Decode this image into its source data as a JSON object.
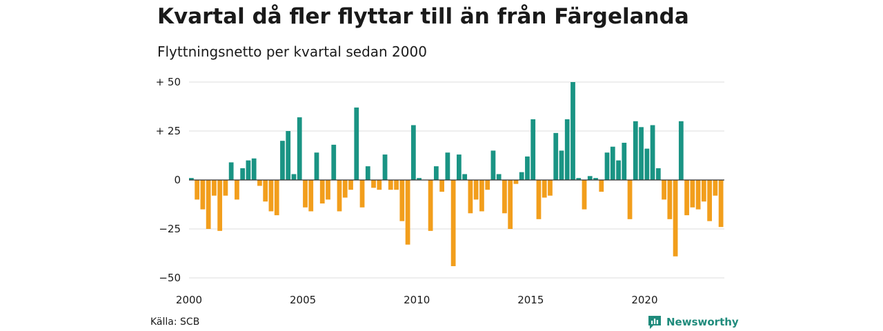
{
  "header": {
    "title": "Kvartal då fler flyttar till än från Färgelanda",
    "subtitle": "Flyttningsnetto per kvartal sedan 2000"
  },
  "footer": {
    "source": "Källa: SCB",
    "brand": "Newsworthy"
  },
  "colors": {
    "positive": "#1a9484",
    "negative": "#f29e1c",
    "grid": "#dcdcdc",
    "zero_line": "#333333",
    "brand": "#1f8b7c"
  },
  "icons": {
    "brand_logo": "chart-speech-bubble-icon"
  },
  "chart_data": {
    "type": "bar",
    "title": "Kvartal då fler flyttar till än från Färgelanda",
    "subtitle": "Flyttningsnetto per kvartal sedan 2000",
    "xlabel": "",
    "ylabel": "",
    "x_start": "2000 Q1",
    "period": "quarter",
    "ylim": [
      -50,
      50
    ],
    "y_ticks": [
      50,
      25,
      0,
      -25,
      -50
    ],
    "y_tick_labels": [
      "+ 50",
      "+ 25",
      "0",
      "−25",
      "−50"
    ],
    "x_tick_labels": [
      "2000",
      "2005",
      "2010",
      "2015",
      "2020"
    ],
    "grid": true,
    "legend": "none",
    "values": [
      1,
      -10,
      -15,
      -25,
      -8,
      -26,
      -8,
      9,
      -10,
      6,
      10,
      11,
      -3,
      -11,
      -16,
      -18,
      20,
      25,
      3,
      32,
      -14,
      -16,
      14,
      -12,
      -10,
      18,
      -16,
      -9,
      -5,
      37,
      -14,
      7,
      -4,
      -5,
      13,
      -5,
      -5,
      -21,
      -33,
      28,
      1,
      0,
      -26,
      7,
      -6,
      14,
      -44,
      13,
      3,
      -17,
      -10,
      -16,
      -5,
      15,
      3,
      -17,
      -25,
      -2,
      4,
      12,
      31,
      -20,
      -9,
      -8,
      24,
      15,
      31,
      50,
      1,
      -15,
      2,
      1,
      -6,
      14,
      17,
      10,
      19,
      -20,
      30,
      27,
      16,
      28,
      6,
      -10,
      -20,
      -39,
      30,
      -18,
      -14,
      -15,
      -11,
      -21,
      -8,
      -24
    ]
  }
}
